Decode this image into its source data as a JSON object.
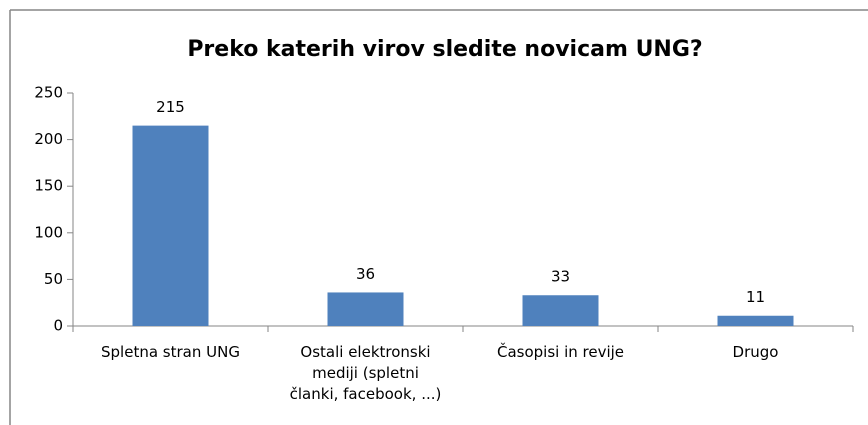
{
  "chart_data": {
    "type": "bar",
    "title": "Preko katerih virov sledite novicam UNG?",
    "categories": [
      "Spletna stran UNG",
      "Ostali elektronski mediji (spletni članki, facebook, ...)",
      "Časopisi in revije",
      "Drugo"
    ],
    "values": [
      215,
      36,
      33,
      11
    ],
    "color": "#4f81bd",
    "ylim": [
      0,
      250
    ],
    "yticks": [
      0,
      50,
      100,
      150,
      200,
      250
    ],
    "grid": false
  }
}
